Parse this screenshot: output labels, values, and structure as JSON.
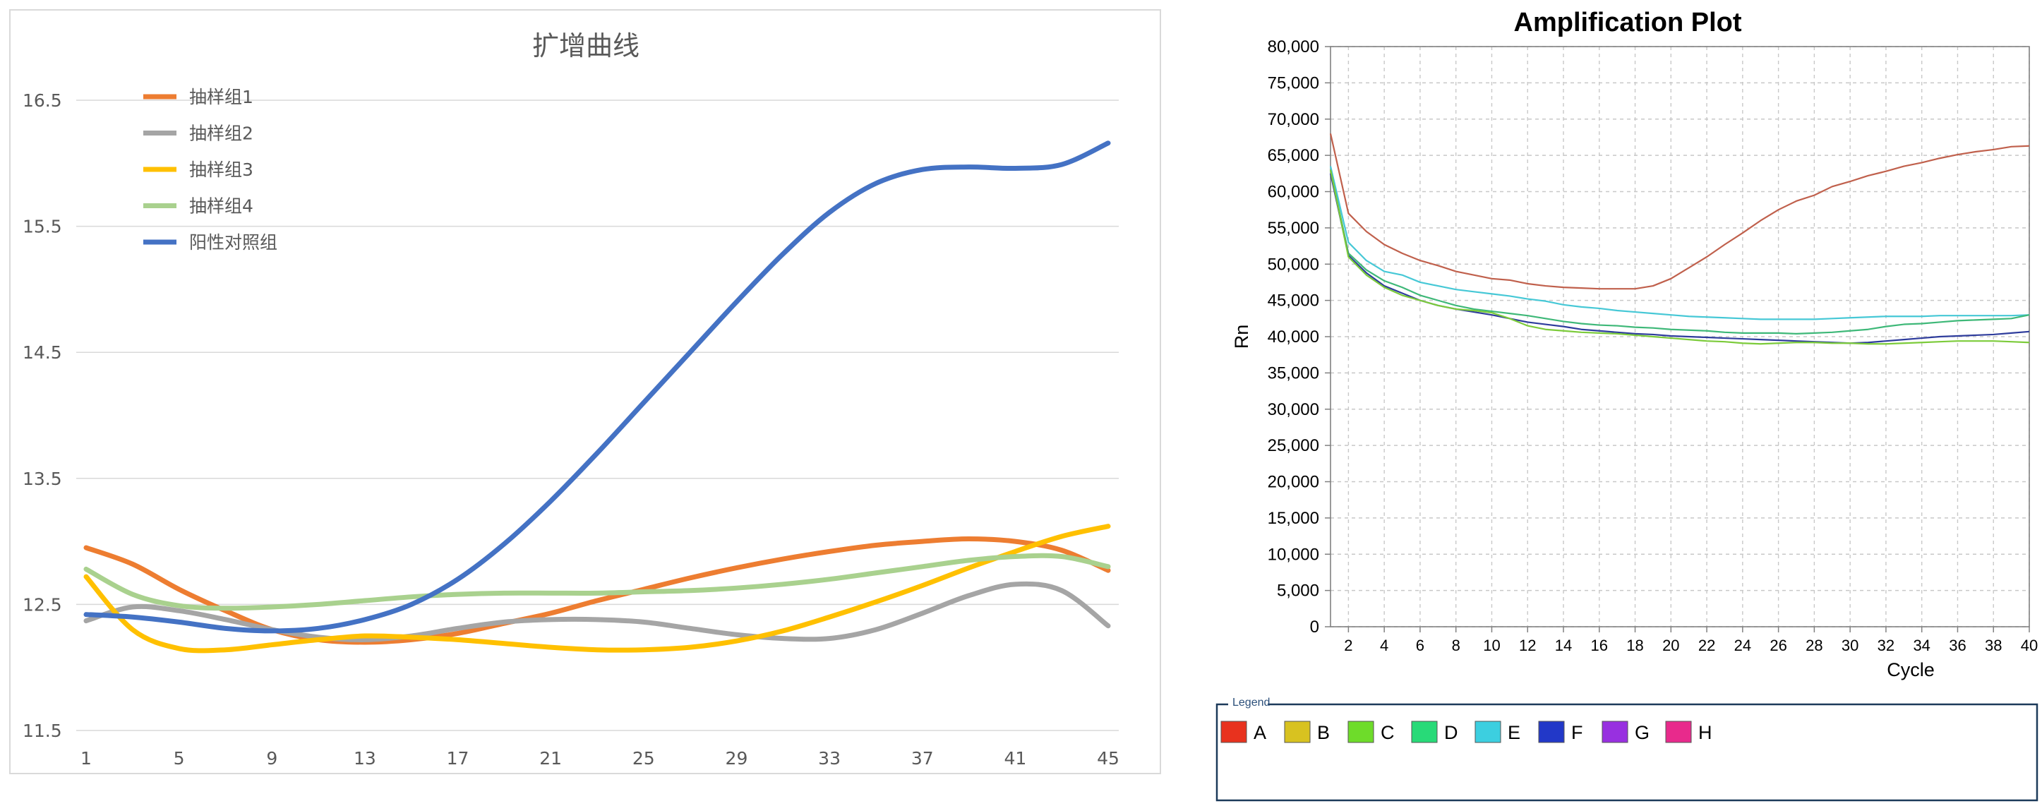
{
  "chart_data": [
    {
      "type": "line",
      "title": "扩增曲线",
      "xlabel": "",
      "ylabel": "",
      "x_ticks": [
        "1",
        "5",
        "9",
        "13",
        "17",
        "21",
        "25",
        "29",
        "33",
        "37",
        "41",
        "45"
      ],
      "y_ticks": [
        "16.5",
        "15.5",
        "14.5",
        "13.5",
        "12.5",
        "11.5"
      ],
      "ylim": [
        11.5,
        16.5
      ],
      "xlim": [
        1,
        45
      ],
      "grid": "horizontal",
      "legend_position": "top-left",
      "x": [
        1,
        3,
        5,
        7,
        9,
        11,
        13,
        15,
        17,
        19,
        21,
        23,
        25,
        27,
        29,
        31,
        33,
        35,
        37,
        39,
        41,
        43,
        45
      ],
      "series": [
        {
          "name": "抽样组1",
          "color": "#ED7D31",
          "values": [
            12.95,
            12.82,
            12.62,
            12.45,
            12.3,
            12.22,
            12.2,
            12.22,
            12.27,
            12.35,
            12.43,
            12.53,
            12.62,
            12.71,
            12.79,
            12.86,
            12.92,
            12.97,
            13.0,
            13.02,
            13.0,
            12.93,
            12.77
          ]
        },
        {
          "name": "抽样组2",
          "color": "#A5A5A5",
          "values": [
            12.37,
            12.48,
            12.45,
            12.38,
            12.3,
            12.24,
            12.22,
            12.25,
            12.31,
            12.36,
            12.38,
            12.38,
            12.36,
            12.31,
            12.26,
            12.23,
            12.23,
            12.3,
            12.43,
            12.57,
            12.66,
            12.61,
            12.33
          ]
        },
        {
          "name": "抽样组3",
          "color": "#FFC000",
          "values": [
            12.72,
            12.3,
            12.15,
            12.14,
            12.18,
            12.22,
            12.25,
            12.24,
            12.22,
            12.19,
            12.16,
            12.14,
            12.14,
            12.16,
            12.21,
            12.29,
            12.4,
            12.52,
            12.65,
            12.79,
            12.92,
            13.04,
            13.12
          ]
        },
        {
          "name": "抽样组4",
          "color": "#A9D18E",
          "values": [
            12.78,
            12.58,
            12.49,
            12.47,
            12.48,
            12.5,
            12.53,
            12.56,
            12.58,
            12.59,
            12.59,
            12.59,
            12.6,
            12.61,
            12.63,
            12.66,
            12.7,
            12.75,
            12.8,
            12.85,
            12.88,
            12.88,
            12.8
          ]
        },
        {
          "name": "阳性对照组",
          "color": "#4472C4",
          "values": [
            12.42,
            12.4,
            12.36,
            12.31,
            12.29,
            12.31,
            12.38,
            12.5,
            12.7,
            12.98,
            13.32,
            13.7,
            14.1,
            14.5,
            14.9,
            15.28,
            15.61,
            15.84,
            15.95,
            15.97,
            15.96,
            15.99,
            16.16
          ]
        }
      ]
    },
    {
      "type": "line",
      "title": "Amplification Plot",
      "xlabel": "Cycle",
      "ylabel": "Rn",
      "x_ticks": [
        "2",
        "4",
        "6",
        "8",
        "10",
        "12",
        "14",
        "16",
        "18",
        "20",
        "22",
        "24",
        "26",
        "28",
        "30",
        "32",
        "34",
        "36",
        "38",
        "40"
      ],
      "y_ticks": [
        "0",
        "5,000",
        "10,000",
        "15,000",
        "20,000",
        "25,000",
        "30,000",
        "35,000",
        "40,000",
        "45,000",
        "50,000",
        "55,000",
        "60,000",
        "65,000",
        "70,000",
        "75,000",
        "80,000"
      ],
      "xlim": [
        1,
        40
      ],
      "ylim": [
        0,
        80000
      ],
      "grid": "dashed",
      "legend_title": "Legend",
      "legend_position": "bottom",
      "legend": [
        {
          "name": "A",
          "color": "#E8321E"
        },
        {
          "name": "B",
          "color": "#D8C220"
        },
        {
          "name": "C",
          "color": "#6EDC2A"
        },
        {
          "name": "D",
          "color": "#28DA78"
        },
        {
          "name": "E",
          "color": "#3CCFE0"
        },
        {
          "name": "F",
          "color": "#2238C8"
        },
        {
          "name": "G",
          "color": "#9830E0"
        },
        {
          "name": "H",
          "color": "#E82A8C"
        }
      ],
      "x": [
        1,
        2,
        3,
        4,
        5,
        6,
        7,
        8,
        9,
        10,
        11,
        12,
        13,
        14,
        15,
        16,
        17,
        18,
        19,
        20,
        21,
        22,
        23,
        24,
        25,
        26,
        27,
        28,
        29,
        30,
        31,
        32,
        33,
        34,
        35,
        36,
        37,
        38,
        39,
        40
      ],
      "series": [
        {
          "color": "#C0604C",
          "values": [
            68000,
            57000,
            54500,
            52700,
            51500,
            50500,
            49800,
            49000,
            48500,
            48000,
            47800,
            47300,
            47000,
            46800,
            46700,
            46600,
            46600,
            46600,
            47000,
            48000,
            49500,
            51000,
            52700,
            54300,
            56000,
            57500,
            58700,
            59500,
            60700,
            61400,
            62200,
            62800,
            63500,
            64000,
            64600,
            65100,
            65500,
            65800,
            66200,
            66300
          ]
        },
        {
          "color": "#46C8D6",
          "values": [
            63500,
            53000,
            50500,
            49000,
            48500,
            47500,
            47000,
            46500,
            46200,
            45900,
            45600,
            45200,
            44900,
            44400,
            44100,
            43900,
            43600,
            43400,
            43200,
            43000,
            42800,
            42700,
            42600,
            42500,
            42400,
            42400,
            42400,
            42400,
            42500,
            42600,
            42700,
            42800,
            42800,
            42800,
            42900,
            42900,
            42900,
            42900,
            42900,
            43000
          ]
        },
        {
          "color": "#3EB878",
          "values": [
            63000,
            51500,
            49200,
            47700,
            46800,
            45700,
            45000,
            44300,
            43800,
            43500,
            43200,
            42900,
            42500,
            42100,
            41800,
            41600,
            41500,
            41300,
            41200,
            41000,
            40900,
            40800,
            40600,
            40500,
            40500,
            40500,
            40400,
            40500,
            40600,
            40800,
            41000,
            41400,
            41700,
            41800,
            42000,
            42200,
            42300,
            42400,
            42500,
            43000
          ]
        },
        {
          "color": "#2E3C9C",
          "values": [
            62500,
            51200,
            48800,
            47000,
            46000,
            45000,
            44300,
            43800,
            43400,
            43000,
            42500,
            42000,
            41700,
            41400,
            41000,
            40800,
            40600,
            40400,
            40300,
            40100,
            40000,
            39900,
            39800,
            39700,
            39600,
            39500,
            39400,
            39300,
            39200,
            39100,
            39200,
            39400,
            39600,
            39800,
            40000,
            40100,
            40200,
            40300,
            40500,
            40700
          ]
        },
        {
          "color": "#7CCB3A",
          "values": [
            63000,
            51000,
            48500,
            46800,
            45700,
            45000,
            44300,
            43800,
            43600,
            43300,
            42500,
            41500,
            41000,
            40800,
            40600,
            40500,
            40400,
            40200,
            40000,
            39800,
            39600,
            39400,
            39300,
            39100,
            39000,
            39100,
            39200,
            39200,
            39100,
            39100,
            39000,
            39000,
            39100,
            39200,
            39300,
            39400,
            39400,
            39400,
            39300,
            39200
          ]
        }
      ]
    }
  ]
}
